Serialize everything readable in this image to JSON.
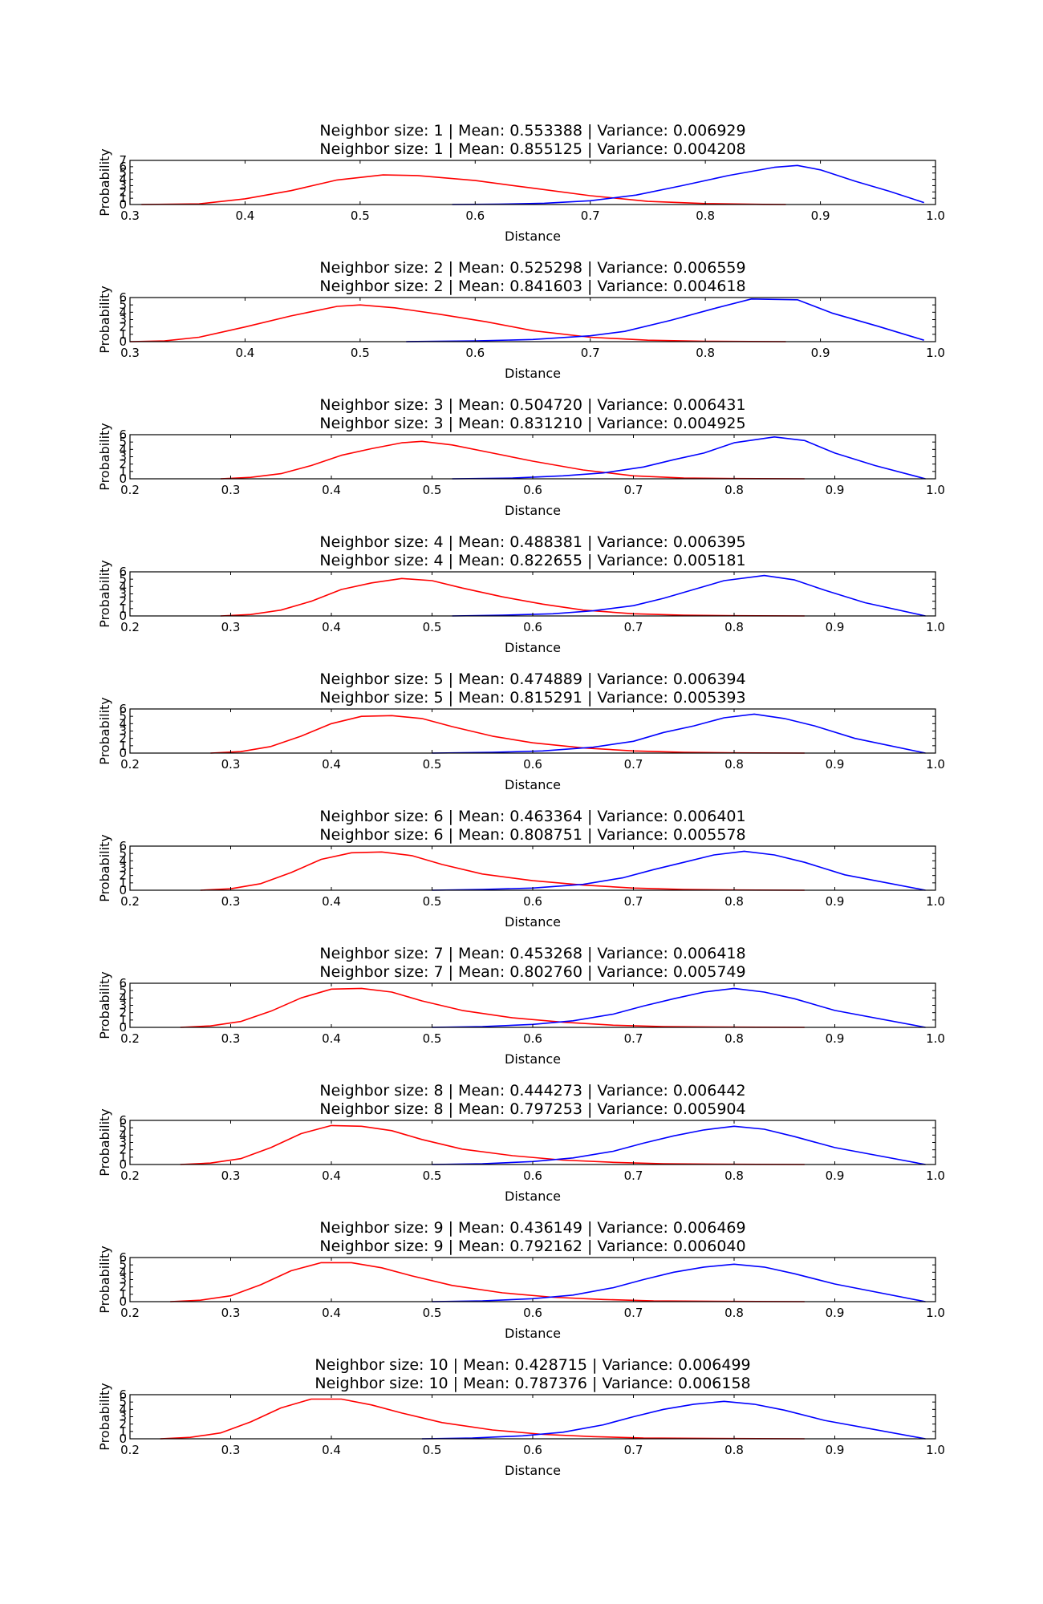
{
  "colors": {
    "series_a": "#ff0000",
    "series_b": "#0000ff",
    "frame": "#000000"
  },
  "chart_data": [
    {
      "type": "line",
      "title_lines": [
        "Neighbor size: 1 | Mean: 0.553388 | Variance: 0.006929",
        "Neighbor size: 1 | Mean: 0.855125 | Variance: 0.004208"
      ],
      "xlabel": "Distance",
      "ylabel": "Probability",
      "xlim": [
        0.3,
        1.0
      ],
      "ylim": [
        0,
        7
      ],
      "xticks": [
        "0.3",
        "0.4",
        "0.5",
        "0.6",
        "0.7",
        "0.8",
        "0.9",
        "1.0"
      ],
      "yticks": [
        "0",
        "1",
        "2",
        "3",
        "4",
        "5",
        "6",
        "7"
      ],
      "series": [
        {
          "color": "#ff0000",
          "x": [
            0.31,
            0.36,
            0.4,
            0.44,
            0.48,
            0.52,
            0.55,
            0.6,
            0.65,
            0.7,
            0.75,
            0.8,
            0.85,
            0.87
          ],
          "y": [
            0,
            0.1,
            0.9,
            2.2,
            3.9,
            4.7,
            4.6,
            3.8,
            2.6,
            1.4,
            0.5,
            0.15,
            0.03,
            0
          ]
        },
        {
          "color": "#0000ff",
          "x": [
            0.58,
            0.62,
            0.66,
            0.7,
            0.74,
            0.78,
            0.82,
            0.86,
            0.88,
            0.9,
            0.93,
            0.96,
            0.99
          ],
          "y": [
            0,
            0.05,
            0.2,
            0.6,
            1.5,
            3.0,
            4.6,
            5.9,
            6.2,
            5.5,
            3.7,
            2.1,
            0.3
          ]
        }
      ]
    },
    {
      "type": "line",
      "title_lines": [
        "Neighbor size: 2 | Mean: 0.525298 | Variance: 0.006559",
        "Neighbor size: 2 | Mean: 0.841603 | Variance: 0.004618"
      ],
      "xlabel": "Distance",
      "ylabel": "Probability",
      "xlim": [
        0.3,
        1.0
      ],
      "ylim": [
        0,
        6
      ],
      "xticks": [
        "0.3",
        "0.4",
        "0.5",
        "0.6",
        "0.7",
        "0.8",
        "0.9",
        "1.0"
      ],
      "yticks": [
        "0",
        "1",
        "2",
        "3",
        "4",
        "5",
        "6"
      ],
      "series": [
        {
          "color": "#ff0000",
          "x": [
            0.3,
            0.33,
            0.36,
            0.4,
            0.44,
            0.48,
            0.5,
            0.53,
            0.57,
            0.61,
            0.65,
            0.7,
            0.75,
            0.8,
            0.87
          ],
          "y": [
            0,
            0.1,
            0.6,
            2.0,
            3.5,
            4.8,
            5.0,
            4.6,
            3.7,
            2.7,
            1.5,
            0.6,
            0.2,
            0.05,
            0
          ]
        },
        {
          "color": "#0000ff",
          "x": [
            0.54,
            0.6,
            0.65,
            0.7,
            0.73,
            0.77,
            0.81,
            0.84,
            0.88,
            0.91,
            0.95,
            0.99
          ],
          "y": [
            0,
            0.1,
            0.3,
            0.8,
            1.4,
            2.9,
            4.6,
            5.8,
            5.7,
            3.9,
            2.1,
            0.2
          ]
        }
      ]
    },
    {
      "type": "line",
      "title_lines": [
        "Neighbor size: 3 | Mean: 0.504720 | Variance: 0.006431",
        "Neighbor size: 3 | Mean: 0.831210 | Variance: 0.004925"
      ],
      "xlabel": "Distance",
      "ylabel": "Probability",
      "xlim": [
        0.2,
        1.0
      ],
      "ylim": [
        0,
        6
      ],
      "xticks": [
        "0.2",
        "0.3",
        "0.4",
        "0.5",
        "0.6",
        "0.7",
        "0.8",
        "0.9",
        "1.0"
      ],
      "yticks": [
        "0",
        "1",
        "2",
        "3",
        "4",
        "5",
        "6"
      ],
      "series": [
        {
          "color": "#ff0000",
          "x": [
            0.29,
            0.32,
            0.35,
            0.38,
            0.41,
            0.44,
            0.47,
            0.49,
            0.52,
            0.56,
            0.6,
            0.65,
            0.7,
            0.75,
            0.8,
            0.87
          ],
          "y": [
            0,
            0.2,
            0.7,
            1.8,
            3.2,
            4.1,
            4.9,
            5.1,
            4.6,
            3.5,
            2.4,
            1.2,
            0.4,
            0.1,
            0.03,
            0
          ]
        },
        {
          "color": "#0000ff",
          "x": [
            0.52,
            0.58,
            0.63,
            0.67,
            0.71,
            0.74,
            0.77,
            0.8,
            0.84,
            0.87,
            0.9,
            0.94,
            0.99
          ],
          "y": [
            0,
            0.1,
            0.4,
            0.8,
            1.6,
            2.6,
            3.5,
            4.9,
            5.7,
            5.2,
            3.5,
            1.8,
            0
          ]
        }
      ]
    },
    {
      "type": "line",
      "title_lines": [
        "Neighbor size: 4 | Mean: 0.488381 | Variance: 0.006395",
        "Neighbor size: 4 | Mean: 0.822655 | Variance: 0.005181"
      ],
      "xlabel": "Distance",
      "ylabel": "Probability",
      "xlim": [
        0.2,
        1.0
      ],
      "ylim": [
        0,
        6
      ],
      "xticks": [
        "0.2",
        "0.3",
        "0.4",
        "0.5",
        "0.6",
        "0.7",
        "0.8",
        "0.9",
        "1.0"
      ],
      "yticks": [
        "0",
        "1",
        "2",
        "3",
        "4",
        "5",
        "6"
      ],
      "series": [
        {
          "color": "#ff0000",
          "x": [
            0.29,
            0.32,
            0.35,
            0.38,
            0.41,
            0.44,
            0.47,
            0.5,
            0.53,
            0.57,
            0.61,
            0.65,
            0.7,
            0.75,
            0.8,
            0.87
          ],
          "y": [
            0,
            0.2,
            0.8,
            2.0,
            3.6,
            4.5,
            5.1,
            4.8,
            3.8,
            2.6,
            1.6,
            0.8,
            0.3,
            0.1,
            0.03,
            0
          ]
        },
        {
          "color": "#0000ff",
          "x": [
            0.52,
            0.57,
            0.62,
            0.66,
            0.7,
            0.73,
            0.76,
            0.79,
            0.83,
            0.86,
            0.89,
            0.93,
            0.99
          ],
          "y": [
            0,
            0.1,
            0.3,
            0.7,
            1.4,
            2.4,
            3.6,
            4.8,
            5.5,
            4.9,
            3.5,
            1.8,
            0
          ]
        }
      ]
    },
    {
      "type": "line",
      "title_lines": [
        "Neighbor size: 5 | Mean: 0.474889 | Variance: 0.006394",
        "Neighbor size: 5 | Mean: 0.815291 | Variance: 0.005393"
      ],
      "xlabel": "Distance",
      "ylabel": "Probability",
      "xlim": [
        0.2,
        1.0
      ],
      "ylim": [
        0,
        6
      ],
      "xticks": [
        "0.2",
        "0.3",
        "0.4",
        "0.5",
        "0.6",
        "0.7",
        "0.8",
        "0.9",
        "1.0"
      ],
      "yticks": [
        "0",
        "1",
        "2",
        "3",
        "4",
        "5",
        "6"
      ],
      "series": [
        {
          "color": "#ff0000",
          "x": [
            0.28,
            0.31,
            0.34,
            0.37,
            0.4,
            0.43,
            0.46,
            0.49,
            0.52,
            0.56,
            0.6,
            0.65,
            0.7,
            0.75,
            0.8,
            0.87
          ],
          "y": [
            0,
            0.2,
            0.9,
            2.3,
            4.0,
            5.0,
            5.1,
            4.7,
            3.6,
            2.3,
            1.4,
            0.7,
            0.3,
            0.1,
            0.03,
            0
          ]
        },
        {
          "color": "#0000ff",
          "x": [
            0.5,
            0.56,
            0.61,
            0.66,
            0.7,
            0.73,
            0.76,
            0.79,
            0.82,
            0.85,
            0.88,
            0.92,
            0.99
          ],
          "y": [
            0,
            0.1,
            0.3,
            0.8,
            1.6,
            2.8,
            3.7,
            4.8,
            5.3,
            4.7,
            3.7,
            2.0,
            0
          ]
        }
      ]
    },
    {
      "type": "line",
      "title_lines": [
        "Neighbor size: 6 | Mean: 0.463364 | Variance: 0.006401",
        "Neighbor size: 6 | Mean: 0.808751 | Variance: 0.005578"
      ],
      "xlabel": "Distance",
      "ylabel": "Probability",
      "xlim": [
        0.2,
        1.0
      ],
      "ylim": [
        0,
        6
      ],
      "xticks": [
        "0.2",
        "0.3",
        "0.4",
        "0.5",
        "0.6",
        "0.7",
        "0.8",
        "0.9",
        "1.0"
      ],
      "yticks": [
        "0",
        "1",
        "2",
        "3",
        "4",
        "5",
        "6"
      ],
      "series": [
        {
          "color": "#ff0000",
          "x": [
            0.27,
            0.3,
            0.33,
            0.36,
            0.39,
            0.42,
            0.45,
            0.48,
            0.51,
            0.55,
            0.6,
            0.65,
            0.7,
            0.75,
            0.8,
            0.87
          ],
          "y": [
            0,
            0.2,
            0.9,
            2.4,
            4.2,
            5.1,
            5.2,
            4.7,
            3.5,
            2.2,
            1.3,
            0.7,
            0.3,
            0.1,
            0.03,
            0
          ]
        },
        {
          "color": "#0000ff",
          "x": [
            0.5,
            0.55,
            0.6,
            0.65,
            0.69,
            0.72,
            0.75,
            0.78,
            0.81,
            0.84,
            0.87,
            0.91,
            0.99
          ],
          "y": [
            0,
            0.1,
            0.3,
            0.8,
            1.7,
            2.8,
            3.8,
            4.8,
            5.3,
            4.8,
            3.8,
            2.1,
            0
          ]
        }
      ]
    },
    {
      "type": "line",
      "title_lines": [
        "Neighbor size: 7 | Mean: 0.453268 | Variance: 0.006418",
        "Neighbor size: 7 | Mean: 0.802760 | Variance: 0.005749"
      ],
      "xlabel": "Distance",
      "ylabel": "Probability",
      "xlim": [
        0.2,
        1.0
      ],
      "ylim": [
        0,
        6
      ],
      "xticks": [
        "0.2",
        "0.3",
        "0.4",
        "0.5",
        "0.6",
        "0.7",
        "0.8",
        "0.9",
        "1.0"
      ],
      "yticks": [
        "0",
        "1",
        "2",
        "3",
        "4",
        "5",
        "6"
      ],
      "series": [
        {
          "color": "#ff0000",
          "x": [
            0.25,
            0.28,
            0.31,
            0.34,
            0.37,
            0.4,
            0.43,
            0.46,
            0.49,
            0.53,
            0.58,
            0.63,
            0.68,
            0.73,
            0.8,
            0.87
          ],
          "y": [
            0,
            0.2,
            0.8,
            2.2,
            4.0,
            5.2,
            5.3,
            4.8,
            3.6,
            2.3,
            1.3,
            0.7,
            0.3,
            0.1,
            0.03,
            0
          ]
        },
        {
          "color": "#0000ff",
          "x": [
            0.5,
            0.55,
            0.6,
            0.64,
            0.68,
            0.71,
            0.74,
            0.77,
            0.8,
            0.83,
            0.86,
            0.9,
            0.99
          ],
          "y": [
            0,
            0.1,
            0.4,
            0.9,
            1.8,
            2.9,
            3.9,
            4.8,
            5.3,
            4.8,
            3.9,
            2.3,
            0
          ]
        }
      ]
    },
    {
      "type": "line",
      "title_lines": [
        "Neighbor size: 8 | Mean: 0.444273 | Variance: 0.006442",
        "Neighbor size: 8 | Mean: 0.797253 | Variance: 0.005904"
      ],
      "xlabel": "Distance",
      "ylabel": "Probability",
      "xlim": [
        0.2,
        1.0
      ],
      "ylim": [
        0,
        6
      ],
      "xticks": [
        "0.2",
        "0.3",
        "0.4",
        "0.5",
        "0.6",
        "0.7",
        "0.8",
        "0.9",
        "1.0"
      ],
      "yticks": [
        "0",
        "1",
        "2",
        "3",
        "4",
        "5",
        "6"
      ],
      "series": [
        {
          "color": "#ff0000",
          "x": [
            0.25,
            0.28,
            0.31,
            0.34,
            0.37,
            0.4,
            0.43,
            0.46,
            0.49,
            0.53,
            0.58,
            0.63,
            0.68,
            0.73,
            0.8,
            0.87
          ],
          "y": [
            0,
            0.2,
            0.8,
            2.3,
            4.2,
            5.3,
            5.2,
            4.6,
            3.4,
            2.1,
            1.2,
            0.6,
            0.3,
            0.1,
            0.03,
            0
          ]
        },
        {
          "color": "#0000ff",
          "x": [
            0.5,
            0.55,
            0.6,
            0.64,
            0.68,
            0.71,
            0.74,
            0.77,
            0.8,
            0.83,
            0.86,
            0.9,
            0.99
          ],
          "y": [
            0,
            0.1,
            0.4,
            0.9,
            1.8,
            2.9,
            3.9,
            4.7,
            5.2,
            4.8,
            3.8,
            2.3,
            0
          ]
        }
      ]
    },
    {
      "type": "line",
      "title_lines": [
        "Neighbor size: 9 | Mean: 0.436149 | Variance: 0.006469",
        "Neighbor size: 9 | Mean: 0.792162 | Variance: 0.006040"
      ],
      "xlabel": "Distance",
      "ylabel": "Probability",
      "xlim": [
        0.2,
        1.0
      ],
      "ylim": [
        0,
        6
      ],
      "xticks": [
        "0.2",
        "0.3",
        "0.4",
        "0.5",
        "0.6",
        "0.7",
        "0.8",
        "0.9",
        "1.0"
      ],
      "yticks": [
        "0",
        "1",
        "2",
        "3",
        "4",
        "5",
        "6"
      ],
      "series": [
        {
          "color": "#ff0000",
          "x": [
            0.24,
            0.27,
            0.3,
            0.33,
            0.36,
            0.39,
            0.42,
            0.45,
            0.48,
            0.52,
            0.57,
            0.62,
            0.67,
            0.72,
            0.8,
            0.87
          ],
          "y": [
            0,
            0.2,
            0.8,
            2.3,
            4.2,
            5.3,
            5.3,
            4.6,
            3.5,
            2.2,
            1.2,
            0.6,
            0.3,
            0.1,
            0.03,
            0
          ]
        },
        {
          "color": "#0000ff",
          "x": [
            0.5,
            0.55,
            0.6,
            0.64,
            0.68,
            0.71,
            0.74,
            0.77,
            0.8,
            0.83,
            0.86,
            0.9,
            0.99
          ],
          "y": [
            0,
            0.1,
            0.4,
            0.9,
            1.9,
            3.0,
            4.0,
            4.7,
            5.1,
            4.7,
            3.8,
            2.4,
            0
          ]
        }
      ]
    },
    {
      "type": "line",
      "title_lines": [
        "Neighbor size: 10 | Mean: 0.428715 | Variance: 0.006499",
        "Neighbor size: 10 | Mean: 0.787376 | Variance: 0.006158"
      ],
      "xlabel": "Distance",
      "ylabel": "Probability",
      "xlim": [
        0.2,
        1.0
      ],
      "ylim": [
        0,
        6
      ],
      "xticks": [
        "0.2",
        "0.3",
        "0.4",
        "0.5",
        "0.6",
        "0.7",
        "0.8",
        "0.9",
        "1.0"
      ],
      "yticks": [
        "0",
        "1",
        "2",
        "3",
        "4",
        "5",
        "6"
      ],
      "series": [
        {
          "color": "#ff0000",
          "x": [
            0.23,
            0.26,
            0.29,
            0.32,
            0.35,
            0.38,
            0.41,
            0.44,
            0.47,
            0.51,
            0.56,
            0.61,
            0.66,
            0.71,
            0.8,
            0.87
          ],
          "y": [
            0,
            0.2,
            0.8,
            2.3,
            4.2,
            5.4,
            5.4,
            4.6,
            3.5,
            2.2,
            1.2,
            0.6,
            0.3,
            0.1,
            0.03,
            0
          ]
        },
        {
          "color": "#0000ff",
          "x": [
            0.49,
            0.54,
            0.59,
            0.63,
            0.67,
            0.7,
            0.73,
            0.76,
            0.79,
            0.82,
            0.85,
            0.89,
            0.99
          ],
          "y": [
            0,
            0.1,
            0.4,
            0.9,
            1.9,
            3.0,
            4.0,
            4.7,
            5.1,
            4.7,
            3.9,
            2.5,
            0
          ]
        }
      ]
    }
  ]
}
